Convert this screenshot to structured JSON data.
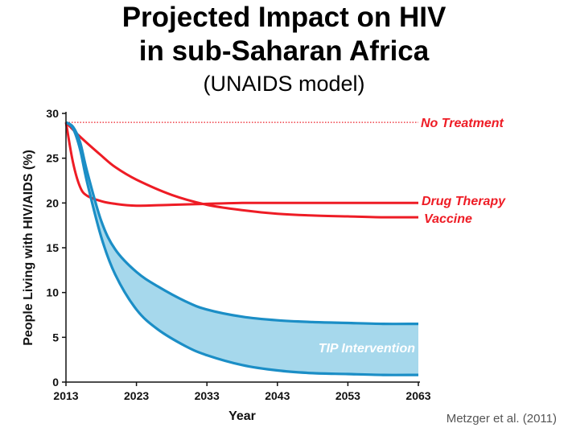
{
  "header": {
    "title_line1": "Projected Impact on HIV",
    "title_line2": "in sub-Saharan Africa",
    "subtitle": "(UNAIDS model)"
  },
  "credit": "Metzger et al. (2011)",
  "colors": {
    "red": "#ee1c25",
    "blue": "#1b8ec6",
    "band": "#a6d8ec",
    "axis": "#111111"
  },
  "chart_data": {
    "type": "line",
    "xlabel": "Year",
    "ylabel": "People Living with HIV/AIDS (%)",
    "xlim": [
      2013,
      2063
    ],
    "ylim": [
      0,
      30
    ],
    "xticks": [
      2013,
      2023,
      2033,
      2043,
      2053,
      2063
    ],
    "yticks": [
      0,
      5,
      10,
      15,
      20,
      25,
      30
    ],
    "grid": false,
    "series": [
      {
        "name": "No Treatment",
        "color": "#ee1c25",
        "style": "dotted",
        "x": [
          2013,
          2063
        ],
        "y": [
          29,
          29
        ]
      },
      {
        "name": "Drug Therapy",
        "color": "#ee1c25",
        "style": "solid",
        "x": [
          2013,
          2014,
          2015,
          2016,
          2018,
          2020,
          2023,
          2028,
          2033,
          2038,
          2043,
          2053,
          2063
        ],
        "y": [
          29,
          24.5,
          21.8,
          20.8,
          20.2,
          19.9,
          19.7,
          19.8,
          19.9,
          20.0,
          20.0,
          20.0,
          20.0
        ]
      },
      {
        "name": "Vaccine",
        "color": "#ee1c25",
        "style": "solid",
        "x": [
          2013,
          2015,
          2018,
          2020,
          2023,
          2028,
          2033,
          2038,
          2043,
          2048,
          2053,
          2058,
          2063
        ],
        "y": [
          29,
          27.4,
          25.3,
          24.0,
          22.6,
          20.9,
          19.8,
          19.2,
          18.8,
          18.6,
          18.5,
          18.4,
          18.4
        ]
      },
      {
        "name": "TIP Intervention",
        "color": "#1b8ec6",
        "style": "band",
        "x": [
          2013,
          2014,
          2015,
          2016,
          2018,
          2020,
          2023,
          2026,
          2030,
          2033,
          2038,
          2043,
          2048,
          2053,
          2058,
          2063
        ],
        "upper": [
          29,
          28.5,
          26.8,
          23.5,
          18.0,
          14.8,
          12.3,
          10.7,
          9.0,
          8.1,
          7.3,
          6.9,
          6.7,
          6.6,
          6.5,
          6.5
        ],
        "lower": [
          29,
          28.3,
          26.0,
          22.3,
          16.2,
          12.0,
          8.1,
          5.9,
          4.0,
          3.0,
          1.9,
          1.3,
          1.0,
          0.9,
          0.8,
          0.8
        ]
      }
    ],
    "labels": [
      "No Treatment",
      "Drug Therapy",
      "Vaccine",
      "TIP Intervention"
    ]
  }
}
